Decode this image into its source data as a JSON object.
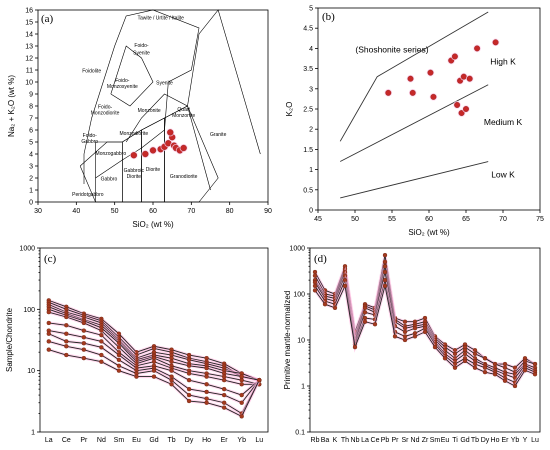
{
  "chart_data": [
    {
      "panel": "(a)",
      "type": "scatter",
      "xlabel": "SiO₂ (wt %)",
      "ylabel": "Na₂ + K₂O (wt %)",
      "xlim": [
        30,
        90
      ],
      "ylim": [
        0,
        16
      ],
      "xticks": [
        30,
        40,
        50,
        60,
        70,
        80,
        90
      ],
      "yticks": [
        0,
        1,
        2,
        3,
        4,
        5,
        6,
        7,
        8,
        9,
        10,
        11,
        12,
        13,
        14,
        15,
        16
      ],
      "field_labels": [
        {
          "text": "Tawite / Urtite / Italite",
          "x": 62,
          "y": 15.2
        },
        {
          "text": "Foido-",
          "x": 57,
          "y": 12.9
        },
        {
          "text": "Syenite",
          "x": 57,
          "y": 12.3
        },
        {
          "text": "Foidolite",
          "x": 44,
          "y": 10.8
        },
        {
          "text": "Foido-",
          "x": 52,
          "y": 10.0
        },
        {
          "text": "Monzosyenite",
          "x": 52,
          "y": 9.5
        },
        {
          "text": "Syenite",
          "x": 63,
          "y": 9.8
        },
        {
          "text": "Foido-",
          "x": 47.5,
          "y": 7.8
        },
        {
          "text": "Monzodiorite",
          "x": 47.5,
          "y": 7.3
        },
        {
          "text": "Monzonite",
          "x": 59,
          "y": 7.5
        },
        {
          "text": "Quart",
          "x": 68,
          "y": 7.6
        },
        {
          "text": "Monzonite",
          "x": 68,
          "y": 7.1
        },
        {
          "text": "Foido-",
          "x": 43.5,
          "y": 5.4
        },
        {
          "text": "Gabbro",
          "x": 43.5,
          "y": 4.9
        },
        {
          "text": "Monzodiorite",
          "x": 55,
          "y": 5.6
        },
        {
          "text": "Monzogabbro",
          "x": 49,
          "y": 3.9
        },
        {
          "text": "Granite",
          "x": 77,
          "y": 5.5
        },
        {
          "text": "Gabbroic",
          "x": 55,
          "y": 2.5
        },
        {
          "text": "Diorite",
          "x": 55,
          "y": 2.0
        },
        {
          "text": "Diorite",
          "x": 60,
          "y": 2.6
        },
        {
          "text": "Gabbro",
          "x": 48.5,
          "y": 1.8
        },
        {
          "text": "Granodiorite",
          "x": 68,
          "y": 2.0
        },
        {
          "text": "Peridotgabbro",
          "x": 43,
          "y": 0.5
        }
      ],
      "points": [
        [
          55,
          3.9
        ],
        [
          58,
          4.0
        ],
        [
          60,
          4.3
        ],
        [
          62,
          4.4
        ],
        [
          63,
          4.6
        ],
        [
          64,
          4.9
        ],
        [
          65,
          5.4
        ],
        [
          65.5,
          4.7
        ],
        [
          66,
          4.5
        ],
        [
          67,
          4.3
        ],
        [
          68,
          4.5
        ],
        [
          64.5,
          5.8
        ]
      ]
    },
    {
      "panel": "(b)",
      "type": "scatter",
      "xlabel": "SiO₂ (wt %)",
      "ylabel": "K₂O",
      "xlim": [
        45,
        75
      ],
      "ylim": [
        0,
        5
      ],
      "xticks": [
        45,
        50,
        55,
        60,
        65,
        70,
        75
      ],
      "yticks": [
        0,
        0.5,
        1,
        1.5,
        2,
        2.5,
        3,
        3.5,
        4,
        4.5,
        5
      ],
      "series_labels": [
        {
          "text": "(Shoshonite series)",
          "x": 55,
          "y": 3.9
        },
        {
          "text": "High K",
          "x": 70,
          "y": 3.6
        },
        {
          "text": "Medium K",
          "x": 70,
          "y": 2.1
        },
        {
          "text": "Low K",
          "x": 70,
          "y": 0.8
        }
      ],
      "lines": [
        [
          [
            48,
            1.7
          ],
          [
            53,
            3.3
          ],
          [
            68,
            4.9
          ]
        ],
        [
          [
            48,
            1.2
          ],
          [
            68,
            3.1
          ]
        ],
        [
          [
            48,
            0.3
          ],
          [
            68,
            1.2
          ]
        ]
      ],
      "points": [
        [
          54.5,
          2.9
        ],
        [
          57.5,
          3.25
        ],
        [
          57.8,
          2.9
        ],
        [
          60.2,
          3.4
        ],
        [
          60.6,
          2.8
        ],
        [
          63,
          3.7
        ],
        [
          63.5,
          3.8
        ],
        [
          63.8,
          2.6
        ],
        [
          64.2,
          3.2
        ],
        [
          64.4,
          2.4
        ],
        [
          64.7,
          3.3
        ],
        [
          65,
          2.5
        ],
        [
          65.5,
          3.25
        ],
        [
          66.5,
          4.0
        ],
        [
          69,
          4.15
        ]
      ]
    },
    {
      "panel": "(c)",
      "type": "line",
      "ylabel": "Sample/Chondrite",
      "yscale": "log",
      "ylim": [
        1,
        1000
      ],
      "yticks": [
        1,
        10,
        100,
        1000
      ],
      "categories": [
        "La",
        "Ce",
        "Pr",
        "Nd",
        "Sm",
        "Eu",
        "Gd",
        "Tb",
        "Dy",
        "Ho",
        "Er",
        "Yb",
        "Lu"
      ],
      "series": [
        {
          "values": [
            140,
            110,
            85,
            70,
            40,
            20,
            25,
            22,
            18,
            16,
            13,
            9,
            7
          ]
        },
        {
          "values": [
            130,
            100,
            80,
            65,
            35,
            18,
            23,
            20,
            16,
            14,
            12,
            8,
            7
          ]
        },
        {
          "values": [
            120,
            90,
            75,
            60,
            32,
            16,
            20,
            18,
            15,
            13,
            11,
            8,
            7
          ]
        },
        {
          "values": [
            110,
            85,
            68,
            55,
            30,
            15,
            18,
            16,
            13,
            12,
            10,
            9,
            7
          ]
        },
        {
          "values": [
            100,
            80,
            65,
            50,
            28,
            14,
            17,
            14,
            12,
            11,
            9,
            8,
            7
          ]
        },
        {
          "values": [
            90,
            75,
            60,
            45,
            24,
            13,
            16,
            12,
            10,
            9,
            8,
            7,
            6
          ]
        },
        {
          "values": [
            60,
            55,
            45,
            38,
            20,
            12,
            14,
            11,
            9,
            8,
            7,
            6,
            6
          ]
        },
        {
          "values": [
            45,
            40,
            35,
            30,
            18,
            11,
            12,
            10,
            7,
            6,
            5,
            4,
            7
          ]
        },
        {
          "values": [
            40,
            30,
            28,
            24,
            15,
            10,
            11,
            8,
            5,
            4.5,
            4,
            3,
            7
          ]
        },
        {
          "values": [
            30,
            25,
            22,
            18,
            12,
            9,
            10,
            7,
            4,
            3.5,
            3,
            2,
            7
          ]
        },
        {
          "values": [
            22,
            18,
            16,
            14,
            10,
            8,
            8,
            6,
            3.2,
            3,
            2.5,
            1.8,
            7
          ]
        }
      ]
    },
    {
      "panel": "(d)",
      "type": "line",
      "ylabel": "Primitive mantle-normalized",
      "yscale": "log",
      "ylim": [
        0.1,
        1000
      ],
      "yticks": [
        0.1,
        1,
        10,
        100,
        1000
      ],
      "categories": [
        "Rb",
        "Ba",
        "K",
        "Th",
        "Nb",
        "La",
        "Ce",
        "Pb",
        "Pr",
        "Sr",
        "Nd",
        "Zr",
        "Sm",
        "Eu",
        "Ti",
        "Gd",
        "Tb",
        "Dy",
        "Ho",
        "Er",
        "Yb",
        "Y",
        "Lu"
      ],
      "series": [
        {
          "values": [
            300,
            120,
            100,
            400,
            15,
            60,
            50,
            700,
            30,
            25,
            25,
            30,
            12,
            8,
            6,
            8,
            6,
            4,
            3,
            3,
            2.5,
            4,
            3
          ]
        },
        {
          "values": [
            250,
            100,
            90,
            350,
            12,
            55,
            45,
            500,
            28,
            20,
            22,
            25,
            11,
            7,
            5,
            7,
            5,
            4,
            3,
            2.5,
            2,
            3.5,
            3
          ]
        },
        {
          "values": [
            200,
            90,
            80,
            300,
            10,
            50,
            40,
            400,
            25,
            18,
            20,
            22,
            10,
            6,
            4,
            6,
            4,
            3,
            2.5,
            2,
            1.8,
            3,
            2.5
          ]
        },
        {
          "values": [
            180,
            80,
            70,
            250,
            9,
            40,
            35,
            300,
            20,
            15,
            18,
            20,
            9,
            5,
            3.5,
            5,
            3.5,
            2.8,
            2.2,
            1.8,
            1.5,
            2.8,
            2.2
          ]
        },
        {
          "values": [
            150,
            70,
            60,
            200,
            8,
            30,
            28,
            200,
            15,
            12,
            14,
            18,
            8,
            4.5,
            3,
            4,
            3,
            2.5,
            2,
            1.5,
            1.2,
            2.5,
            2
          ]
        },
        {
          "values": [
            120,
            60,
            50,
            150,
            7,
            25,
            22,
            150,
            12,
            10,
            12,
            15,
            7,
            4,
            2.5,
            3.5,
            2.5,
            2,
            1.8,
            1.3,
            1,
            2.2,
            1.8
          ]
        }
      ]
    }
  ]
}
